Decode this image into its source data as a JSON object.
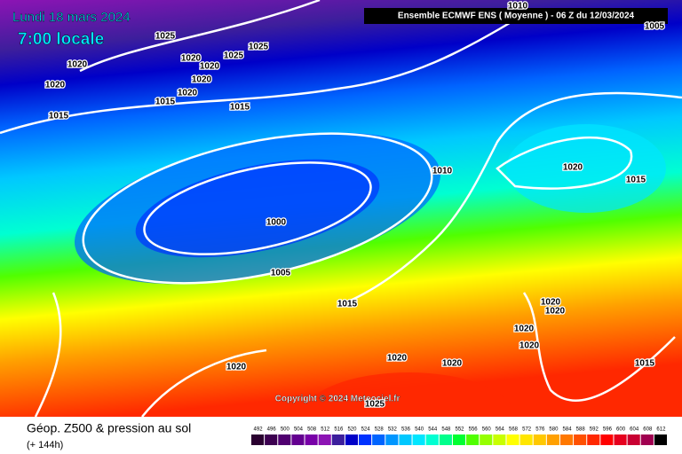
{
  "header": {
    "date": "Lundi 18 mars 2024",
    "time": "7:00 locale",
    "model": "Ensemble ECMWF ENS  ( Moyenne )  -  06 Z du 12/03/2024",
    "copyright": "Copyright © 2024 Meteociel.fr"
  },
  "footer": {
    "title": "Géop. Z500 & pression au sol",
    "lead": "(+ 144h)"
  },
  "isobar_labels": [
    "1025",
    "1025",
    "1020",
    "1020",
    "1025",
    "1020",
    "1020",
    "1020",
    "1020",
    "1015",
    "1015",
    "1015",
    "1010",
    "1000",
    "1005",
    "1015",
    "1020",
    "1015",
    "1020",
    "1020",
    "1020",
    "1020",
    "1020",
    "1020",
    "1020",
    "1015",
    "1025",
    "1005",
    "1010"
  ],
  "scale": {
    "labels": [
      492,
      496,
      500,
      504,
      508,
      512,
      516,
      520,
      524,
      528,
      532,
      536,
      540,
      544,
      548,
      552,
      556,
      560,
      564,
      568,
      572,
      576,
      580,
      584,
      588,
      592,
      596,
      600,
      604,
      608,
      612
    ],
    "colors": [
      "#2a0030",
      "#3c0050",
      "#500070",
      "#640090",
      "#7800a8",
      "#8c14b4",
      "#3c1e9c",
      "#0000c8",
      "#0032ff",
      "#0064ff",
      "#0096ff",
      "#00c8ff",
      "#00e6ff",
      "#00ffd2",
      "#00ff8c",
      "#00ff32",
      "#50ff00",
      "#96ff00",
      "#c8ff00",
      "#ffff00",
      "#ffe600",
      "#ffc800",
      "#ffa000",
      "#ff7800",
      "#ff5000",
      "#ff2800",
      "#ff0000",
      "#e6001e",
      "#c80032",
      "#a00050",
      "#000000"
    ]
  }
}
